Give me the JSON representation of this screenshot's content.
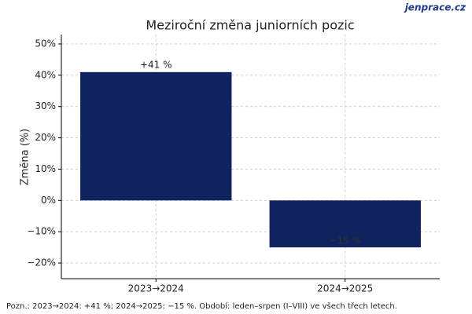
{
  "chart_data": {
    "type": "bar",
    "title": "Meziroční změna juniorních pozic",
    "watermark": "jenprace.cz",
    "ylabel": "Změna (%)",
    "categories": [
      "2023→2024",
      "2024→2025"
    ],
    "values": [
      41,
      -15
    ],
    "value_labels": [
      "+41 %",
      "−15 %"
    ],
    "color": "#10235e",
    "ylim": [
      -25,
      53
    ],
    "yticks": [
      {
        "value": -20,
        "label": "−20%"
      },
      {
        "value": -10,
        "label": "−10%"
      },
      {
        "value": 0,
        "label": "0%"
      },
      {
        "value": 10,
        "label": "10%"
      },
      {
        "value": 20,
        "label": "20%"
      },
      {
        "value": 30,
        "label": "30%"
      },
      {
        "value": 40,
        "label": "40%"
      },
      {
        "value": 50,
        "label": "50%"
      }
    ],
    "grid": true,
    "note": "Pozn.: 2023→2024: +41 %; 2024→2025: −15 %. Období: leden–srpen (I–VIII) ve všech třech letech."
  }
}
